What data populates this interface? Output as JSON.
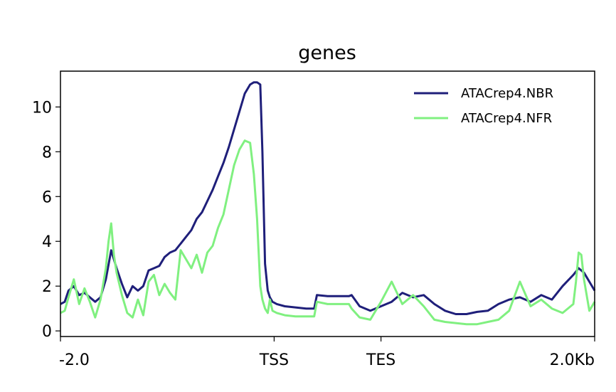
{
  "chart_data": {
    "type": "line",
    "title": "genes",
    "xlabel": "",
    "ylabel": "",
    "ylim": [
      -0.25,
      11.6
    ],
    "yticks": [
      0,
      2,
      4,
      6,
      8,
      10
    ],
    "ytick_labels": [
      "0",
      "2",
      "4",
      "6",
      "8",
      "10"
    ],
    "xlim": [
      0,
      1000
    ],
    "xticks": [
      0,
      400,
      600,
      1000
    ],
    "xtick_labels": [
      "-2.0",
      "TSS",
      "TES",
      "2.0Kb"
    ],
    "legend_position": "top-right",
    "grid": false,
    "series": [
      {
        "name": "ATACrep4.NBR",
        "color": "#1f1f7a",
        "x": [
          0,
          8,
          15,
          25,
          35,
          45,
          55,
          65,
          75,
          85,
          95,
          105,
          115,
          125,
          135,
          145,
          155,
          165,
          175,
          185,
          195,
          205,
          215,
          225,
          235,
          245,
          255,
          265,
          275,
          285,
          295,
          305,
          315,
          325,
          335,
          345,
          355,
          362,
          368,
          374,
          378,
          383,
          388,
          392,
          397,
          405,
          420,
          440,
          460,
          475,
          480,
          500,
          520,
          540,
          545,
          560,
          580,
          600,
          620,
          640,
          660,
          680,
          700,
          720,
          740,
          760,
          780,
          800,
          820,
          840,
          860,
          880,
          900,
          920,
          940,
          960,
          970,
          980,
          990,
          1000
        ],
        "y": [
          1.2,
          1.3,
          1.8,
          2.0,
          1.6,
          1.7,
          1.5,
          1.3,
          1.5,
          2.3,
          3.6,
          2.8,
          2.1,
          1.5,
          2.0,
          1.8,
          2.0,
          2.7,
          2.8,
          2.9,
          3.3,
          3.5,
          3.6,
          3.9,
          4.2,
          4.5,
          5.0,
          5.3,
          5.8,
          6.3,
          6.9,
          7.5,
          8.2,
          9.0,
          9.8,
          10.6,
          11.0,
          11.1,
          11.1,
          11.0,
          8.0,
          3.0,
          1.8,
          1.5,
          1.3,
          1.2,
          1.1,
          1.05,
          1.0,
          1.0,
          1.6,
          1.55,
          1.55,
          1.55,
          1.6,
          1.1,
          0.9,
          1.1,
          1.3,
          1.7,
          1.5,
          1.6,
          1.2,
          0.9,
          0.75,
          0.75,
          0.85,
          0.9,
          1.2,
          1.4,
          1.5,
          1.3,
          1.6,
          1.4,
          2.0,
          2.5,
          2.8,
          2.6,
          2.2,
          1.8
        ]
      },
      {
        "name": "ATACrep4.NFR",
        "color": "#80f080",
        "x": [
          0,
          8,
          15,
          25,
          35,
          45,
          55,
          65,
          75,
          85,
          90,
          95,
          100,
          105,
          115,
          125,
          135,
          145,
          155,
          165,
          175,
          185,
          195,
          205,
          215,
          225,
          235,
          245,
          255,
          265,
          275,
          285,
          295,
          305,
          315,
          325,
          335,
          345,
          355,
          362,
          368,
          374,
          378,
          383,
          388,
          392,
          397,
          405,
          420,
          440,
          460,
          475,
          480,
          500,
          520,
          540,
          545,
          560,
          580,
          600,
          620,
          640,
          660,
          680,
          700,
          720,
          740,
          760,
          780,
          800,
          820,
          840,
          860,
          880,
          900,
          920,
          940,
          960,
          965,
          970,
          975,
          980,
          990,
          1000
        ],
        "y": [
          0.8,
          0.9,
          1.5,
          2.3,
          1.2,
          1.9,
          1.3,
          0.6,
          1.4,
          2.8,
          4.0,
          4.8,
          3.4,
          2.6,
          1.6,
          0.8,
          0.6,
          1.4,
          0.7,
          2.2,
          2.5,
          1.6,
          2.1,
          1.7,
          1.4,
          3.6,
          3.2,
          2.8,
          3.4,
          2.6,
          3.5,
          3.8,
          4.6,
          5.2,
          6.3,
          7.4,
          8.1,
          8.5,
          8.4,
          7.0,
          5.0,
          2.0,
          1.4,
          1.0,
          0.8,
          1.4,
          0.9,
          0.8,
          0.7,
          0.65,
          0.65,
          0.65,
          1.3,
          1.2,
          1.2,
          1.2,
          1.0,
          0.6,
          0.5,
          1.3,
          2.2,
          1.2,
          1.6,
          1.1,
          0.5,
          0.4,
          0.35,
          0.3,
          0.3,
          0.4,
          0.5,
          0.9,
          2.2,
          1.1,
          1.4,
          1.0,
          0.8,
          1.2,
          2.2,
          3.5,
          3.4,
          2.3,
          0.9,
          1.3
        ]
      }
    ]
  }
}
